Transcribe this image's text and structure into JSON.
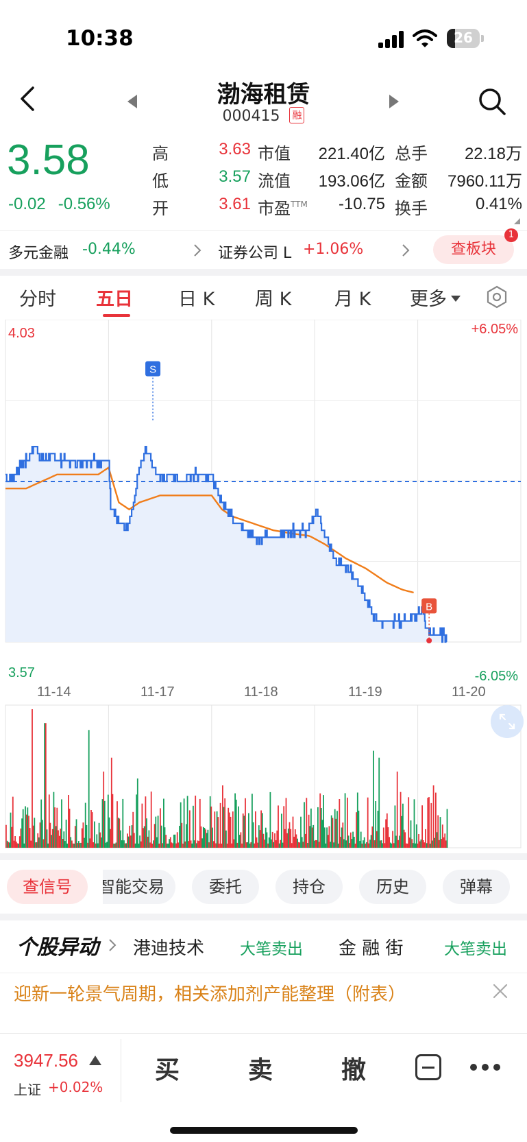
{
  "status_bar": {
    "time": "10:38",
    "battery": "26"
  },
  "header": {
    "stock_name": "渤海租赁",
    "stock_code": "000415",
    "badge": "融"
  },
  "quote": {
    "price": "3.58",
    "change": "-0.02",
    "change_pct": "-0.56%",
    "high_label": "高",
    "high": "3.63",
    "low_label": "低",
    "low": "3.57",
    "open_label": "开",
    "open": "3.61",
    "mcap_label": "市值",
    "mcap": "221.40亿",
    "float_label": "流值",
    "float": "193.06亿",
    "pe_label": "市盈",
    "pe_sup": "TTM",
    "pe": "-10.75",
    "volume_label": "总手",
    "volume": "22.18万",
    "amount_label": "金额",
    "amount": "7960.11万",
    "turnover_label": "换手",
    "turnover": "0.41%"
  },
  "sectors": [
    {
      "name": "多元金融",
      "change": "-0.44%"
    },
    {
      "name": "证券公司 L",
      "change": "+1.06%"
    }
  ],
  "board_button": {
    "label": "查板块",
    "badge": "1"
  },
  "tabs": [
    {
      "label": "分时"
    },
    {
      "label": "五日"
    },
    {
      "label": "日 K"
    },
    {
      "label": "周 K"
    },
    {
      "label": "月 K"
    },
    {
      "label": "更多"
    }
  ],
  "active_tab": "五日",
  "chart_data": {
    "type": "line",
    "days": [
      "11-14",
      "11-17",
      "11-18",
      "11-19",
      "11-20"
    ],
    "ylim": [
      3.57,
      4.03
    ],
    "y_top_label": "4.03",
    "y_bottom_label": "3.57",
    "pct_top_label": "+6.05%",
    "pct_bottom_label": "-6.05%",
    "prev_close": 3.8,
    "price_color": "#2f6fe0",
    "avg_color": "#f07d1a",
    "price_anchors": [
      [
        0,
        3.81
      ],
      [
        0.02,
        3.8
      ],
      [
        0.08,
        3.81
      ],
      [
        0.14,
        3.82
      ],
      [
        0.2,
        3.83
      ],
      [
        0.28,
        3.85
      ],
      [
        0.36,
        3.83
      ],
      [
        0.44,
        3.84
      ],
      [
        0.5,
        3.83
      ],
      [
        1.0,
        3.83
      ],
      [
        1.02,
        3.76
      ],
      [
        1.1,
        3.74
      ],
      [
        1.18,
        3.73
      ],
      [
        1.24,
        3.77
      ],
      [
        1.3,
        3.82
      ],
      [
        1.36,
        3.85
      ],
      [
        1.44,
        3.82
      ],
      [
        1.52,
        3.8
      ],
      [
        1.6,
        3.81
      ],
      [
        1.7,
        3.8
      ],
      [
        1.8,
        3.81
      ],
      [
        2.0,
        3.81
      ],
      [
        2.04,
        3.79
      ],
      [
        2.1,
        3.77
      ],
      [
        2.2,
        3.75
      ],
      [
        2.32,
        3.73
      ],
      [
        2.42,
        3.72
      ],
      [
        2.52,
        3.72
      ],
      [
        2.62,
        3.72
      ],
      [
        2.72,
        3.73
      ],
      [
        2.84,
        3.73
      ],
      [
        2.93,
        3.73
      ],
      [
        3.02,
        3.76
      ],
      [
        3.1,
        3.72
      ],
      [
        3.2,
        3.69
      ],
      [
        3.3,
        3.68
      ],
      [
        3.4,
        3.66
      ],
      [
        3.5,
        3.63
      ],
      [
        3.6,
        3.6
      ],
      [
        3.7,
        3.6
      ],
      [
        3.8,
        3.6
      ],
      [
        3.9,
        3.6
      ],
      [
        4.0,
        3.61
      ],
      [
        4.04,
        3.62
      ],
      [
        4.08,
        3.59
      ],
      [
        4.14,
        3.58
      ],
      [
        4.2,
        3.58
      ],
      [
        4.28,
        3.58
      ]
    ],
    "avg_anchors": [
      [
        0,
        3.79
      ],
      [
        0.2,
        3.79
      ],
      [
        0.5,
        3.81
      ],
      [
        0.9,
        3.81
      ],
      [
        1.0,
        3.82
      ],
      [
        1.1,
        3.77
      ],
      [
        1.2,
        3.76
      ],
      [
        1.3,
        3.77
      ],
      [
        1.5,
        3.78
      ],
      [
        1.8,
        3.78
      ],
      [
        2.0,
        3.78
      ],
      [
        2.1,
        3.76
      ],
      [
        2.2,
        3.75
      ],
      [
        2.4,
        3.74
      ],
      [
        2.6,
        3.73
      ],
      [
        2.8,
        3.725
      ],
      [
        2.95,
        3.722
      ],
      [
        3.1,
        3.71
      ],
      [
        3.3,
        3.69
      ],
      [
        3.5,
        3.675
      ],
      [
        3.7,
        3.655
      ],
      [
        3.85,
        3.645
      ],
      [
        3.98,
        3.64
      ]
    ],
    "signals": [
      {
        "label": "S",
        "x": 1.43,
        "price": 3.88,
        "color": "#2f6fe0"
      },
      {
        "label": "B",
        "x": 4.11,
        "price": 3.603,
        "color": "#e8533a"
      }
    ],
    "volume_up_color": "#e8333a",
    "volume_down_color": "#17a05d"
  },
  "action_chips": [
    {
      "label": "查信号"
    },
    {
      "label": "智能交易"
    },
    {
      "label": "委托"
    },
    {
      "label": "持仓"
    },
    {
      "label": "历史"
    },
    {
      "label": "弹幕"
    }
  ],
  "news": {
    "title": "个股异动",
    "items": [
      {
        "name": "港迪技术",
        "tag": "大笔卖出"
      },
      {
        "name": "金 融 街",
        "tag": "大笔卖出"
      }
    ],
    "headline": "迎新一轮景气周期，相关添加剂产能整理（附表）"
  },
  "bottom_bar": {
    "index_value": "3947.56",
    "index_name": "上证",
    "index_change": "+0.02%",
    "buy": "买",
    "sell": "卖",
    "cancel": "撤"
  }
}
